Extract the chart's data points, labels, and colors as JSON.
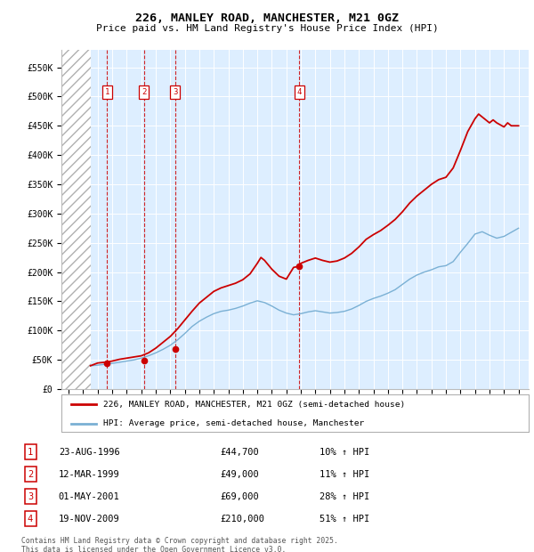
{
  "title": "226, MANLEY ROAD, MANCHESTER, M21 0GZ",
  "subtitle": "Price paid vs. HM Land Registry's House Price Index (HPI)",
  "ylabel_ticks": [
    0,
    50000,
    100000,
    150000,
    200000,
    250000,
    300000,
    350000,
    400000,
    450000,
    500000,
    550000
  ],
  "ylim": [
    0,
    580000
  ],
  "xlim_min": 1993.5,
  "xlim_max": 2025.7,
  "hpi_color": "#7ab0d4",
  "price_color": "#cc0000",
  "plot_bg": "#ddeeff",
  "grid_color": "#ffffff",
  "sales": [
    {
      "num": 1,
      "year": 1996.64,
      "price": 44700
    },
    {
      "num": 2,
      "year": 1999.19,
      "price": 49000
    },
    {
      "num": 3,
      "year": 2001.33,
      "price": 69000
    },
    {
      "num": 4,
      "year": 2009.89,
      "price": 210000
    }
  ],
  "legend_line1": "226, MANLEY ROAD, MANCHESTER, M21 0GZ (semi-detached house)",
  "legend_line2": "HPI: Average price, semi-detached house, Manchester",
  "table_entries": [
    {
      "num": 1,
      "date": "23-AUG-1996",
      "price": "£44,700",
      "hpi": "10% ↑ HPI"
    },
    {
      "num": 2,
      "date": "12-MAR-1999",
      "price": "£49,000",
      "hpi": "11% ↑ HPI"
    },
    {
      "num": 3,
      "date": "01-MAY-2001",
      "price": "£69,000",
      "hpi": "28% ↑ HPI"
    },
    {
      "num": 4,
      "date": "19-NOV-2009",
      "price": "£210,000",
      "hpi": "51% ↑ HPI"
    }
  ],
  "footnote": "Contains HM Land Registry data © Crown copyright and database right 2025.\nThis data is licensed under the Open Government Licence v3.0.",
  "hpi_data_x": [
    1995.5,
    1996.0,
    1996.5,
    1997.0,
    1997.5,
    1998.0,
    1998.5,
    1999.0,
    1999.5,
    2000.0,
    2000.5,
    2001.0,
    2001.5,
    2002.0,
    2002.5,
    2003.0,
    2003.5,
    2004.0,
    2004.5,
    2005.0,
    2005.5,
    2006.0,
    2006.5,
    2007.0,
    2007.5,
    2008.0,
    2008.5,
    2009.0,
    2009.5,
    2010.0,
    2010.5,
    2011.0,
    2011.5,
    2012.0,
    2012.5,
    2013.0,
    2013.5,
    2014.0,
    2014.5,
    2015.0,
    2015.5,
    2016.0,
    2016.5,
    2017.0,
    2017.5,
    2018.0,
    2018.5,
    2019.0,
    2019.5,
    2020.0,
    2020.5,
    2021.0,
    2021.5,
    2022.0,
    2022.5,
    2023.0,
    2023.5,
    2024.0,
    2024.5,
    2025.0
  ],
  "hpi_data_y": [
    40000,
    41000,
    42500,
    44000,
    46000,
    48000,
    50000,
    53000,
    57000,
    62000,
    68000,
    75000,
    84000,
    95000,
    107000,
    116000,
    123000,
    129000,
    133000,
    135000,
    138000,
    142000,
    147000,
    151000,
    148000,
    142000,
    135000,
    130000,
    127000,
    129000,
    132000,
    134000,
    132000,
    130000,
    131000,
    133000,
    137000,
    143000,
    150000,
    155000,
    159000,
    164000,
    170000,
    179000,
    188000,
    195000,
    200000,
    204000,
    209000,
    211000,
    218000,
    234000,
    249000,
    265000,
    269000,
    263000,
    258000,
    261000,
    268000,
    275000
  ],
  "price_data_x": [
    1995.5,
    1996.0,
    1996.5,
    1997.0,
    1997.5,
    1998.0,
    1998.5,
    1999.0,
    1999.5,
    2000.0,
    2000.5,
    2001.0,
    2001.5,
    2002.0,
    2002.5,
    2003.0,
    2003.5,
    2004.0,
    2004.5,
    2005.0,
    2005.5,
    2006.0,
    2006.5,
    2007.0,
    2007.25,
    2007.5,
    2008.0,
    2008.5,
    2009.0,
    2009.5,
    2009.89,
    2010.0,
    2010.5,
    2011.0,
    2011.5,
    2012.0,
    2012.5,
    2013.0,
    2013.5,
    2014.0,
    2014.5,
    2015.0,
    2015.5,
    2016.0,
    2016.5,
    2017.0,
    2017.5,
    2018.0,
    2018.5,
    2019.0,
    2019.5,
    2020.0,
    2020.5,
    2021.0,
    2021.5,
    2022.0,
    2022.25,
    2022.5,
    2022.75,
    2023.0,
    2023.25,
    2023.5,
    2024.0,
    2024.25,
    2024.5,
    2025.0
  ],
  "price_data_y": [
    40000,
    44700,
    46000,
    48000,
    51000,
    53000,
    55000,
    57000,
    62000,
    70000,
    80000,
    90000,
    103000,
    118000,
    133000,
    147000,
    157000,
    167000,
    173000,
    177000,
    181000,
    187000,
    197000,
    215000,
    225000,
    220000,
    205000,
    193000,
    188000,
    208000,
    210000,
    215000,
    220000,
    224000,
    220000,
    217000,
    219000,
    224000,
    232000,
    243000,
    256000,
    264000,
    271000,
    280000,
    290000,
    303000,
    318000,
    330000,
    340000,
    350000,
    358000,
    362000,
    378000,
    408000,
    440000,
    462000,
    470000,
    465000,
    460000,
    455000,
    460000,
    455000,
    448000,
    455000,
    450000,
    450000
  ]
}
